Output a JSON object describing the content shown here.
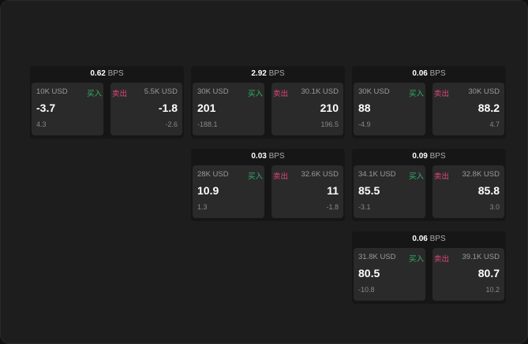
{
  "labels": {
    "buy": "买入",
    "sell": "卖出",
    "unit": "BPS"
  },
  "colors": {
    "buy": "#2fb36b",
    "sell": "#e0457b"
  },
  "panels": [
    {
      "spread": "0.62",
      "bid": {
        "size": "10K USD",
        "price": "-3.7",
        "change": "4.3"
      },
      "ask": {
        "size": "5.5K USD",
        "price": "-1.8",
        "change": "-2.6"
      }
    },
    {
      "spread": "2.92",
      "bid": {
        "size": "30K USD",
        "price": "201",
        "change": "-188.1"
      },
      "ask": {
        "size": "30.1K USD",
        "price": "210",
        "change": "196.5"
      }
    },
    {
      "spread": "0.06",
      "bid": {
        "size": "30K USD",
        "price": "88",
        "change": "-4.9"
      },
      "ask": {
        "size": "30K USD",
        "price": "88.2",
        "change": "4.7"
      }
    },
    {
      "spread": "0.03",
      "bid": {
        "size": "28K USD",
        "price": "10.9",
        "change": "1.3"
      },
      "ask": {
        "size": "32.6K USD",
        "price": "11",
        "change": "-1.8"
      }
    },
    {
      "spread": "0.09",
      "bid": {
        "size": "34.1K USD",
        "price": "85.5",
        "change": "-3.1"
      },
      "ask": {
        "size": "32.8K USD",
        "price": "85.8",
        "change": "3.0"
      }
    },
    {
      "spread": "0.06",
      "bid": {
        "size": "31.8K USD",
        "price": "80.5",
        "change": "-10.8"
      },
      "ask": {
        "size": "39.1K USD",
        "price": "80.7",
        "change": "10.2"
      }
    }
  ]
}
